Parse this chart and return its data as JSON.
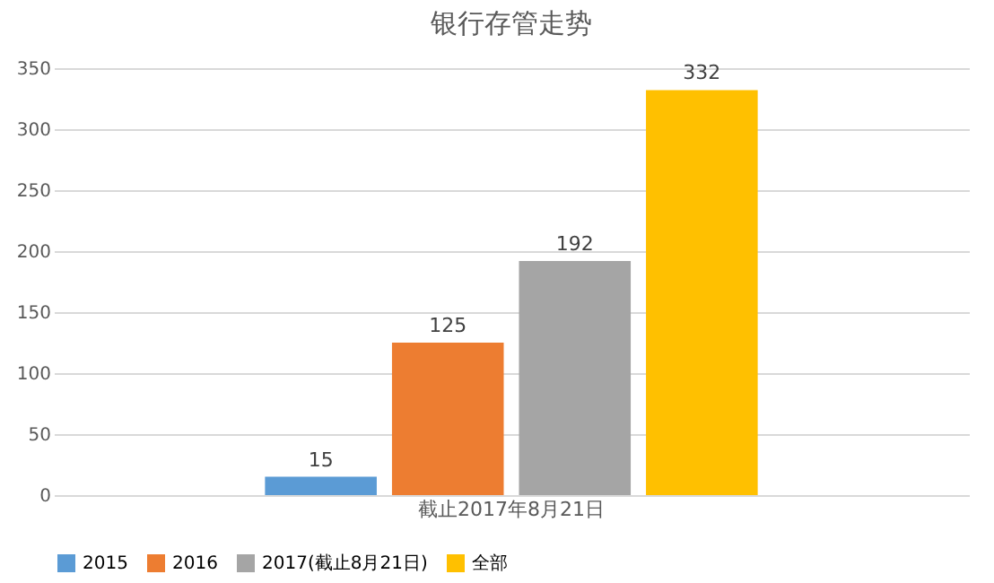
{
  "chart_data": {
    "type": "bar",
    "title": "银行存管走势",
    "categories": [
      "截止2017年8月21日"
    ],
    "series": [
      {
        "name": "2015",
        "color": "#5b9bd5",
        "values": [
          15
        ]
      },
      {
        "name": "2016",
        "color": "#ed7d31",
        "values": [
          125
        ]
      },
      {
        "name": "2017(截止8月21日)",
        "color": "#a5a5a5",
        "values": [
          192
        ]
      },
      {
        "name": "全部",
        "color": "#ffc000",
        "values": [
          332
        ]
      }
    ],
    "ylim": [
      0,
      350
    ],
    "yticks": [
      0,
      50,
      100,
      150,
      200,
      250,
      300,
      350
    ],
    "grid": "y",
    "legend": "bottom",
    "data_labels": true
  }
}
